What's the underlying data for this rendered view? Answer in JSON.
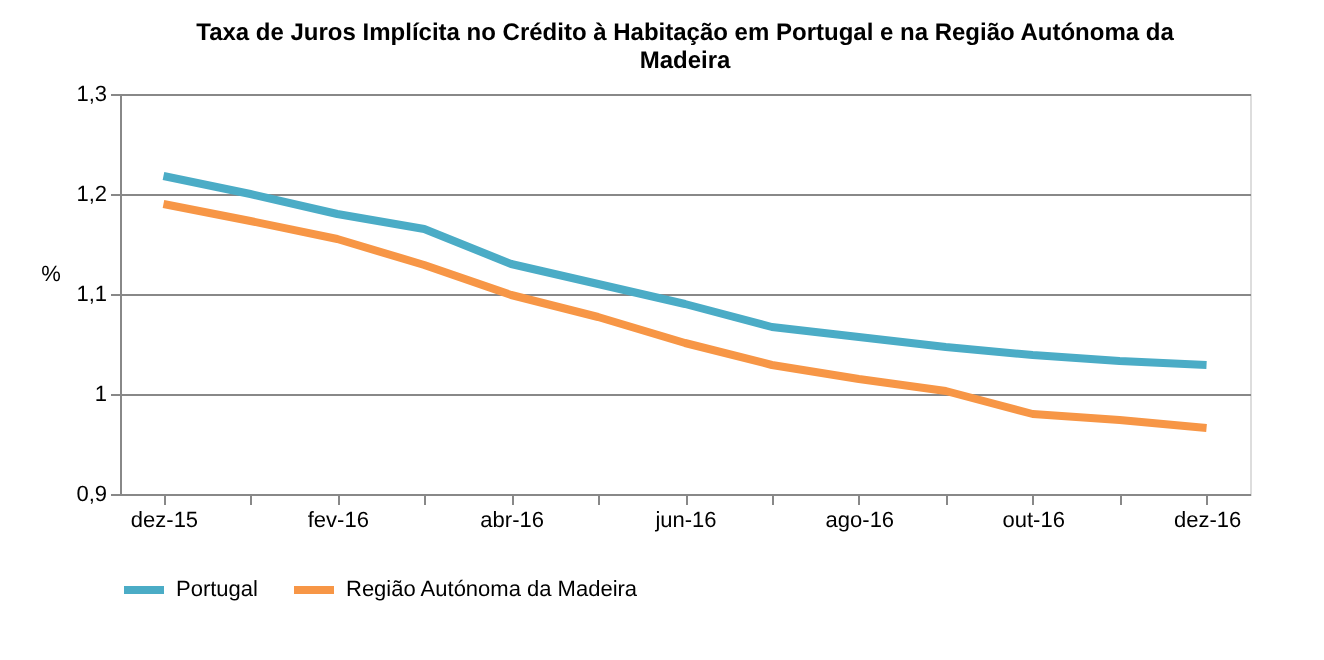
{
  "chart_data": {
    "type": "line",
    "title": "Taxa de Juros Implícita no Crédito à Habitação em Portugal e na Região Autónoma da Madeira",
    "ylabel": "%",
    "categories": [
      "dez-15",
      null,
      "fev-16",
      null,
      "abr-16",
      null,
      "jun-16",
      null,
      "ago-16",
      null,
      "out-16",
      null,
      "dez-16"
    ],
    "series": [
      {
        "name": "Portugal",
        "color": "#4bacc6",
        "values": [
          1.218,
          1.2,
          1.18,
          1.165,
          1.13,
          1.11,
          1.09,
          1.067,
          1.057,
          1.047,
          1.039,
          1.033,
          1.029
        ]
      },
      {
        "name": "Região Autónoma da Madeira",
        "color": "#f79646",
        "values": [
          1.19,
          1.173,
          1.155,
          1.129,
          1.099,
          1.077,
          1.051,
          1.029,
          1.015,
          1.003,
          0.98,
          0.974,
          0.966
        ]
      }
    ],
    "ylim": [
      0.9,
      1.3
    ],
    "yticks": [
      {
        "value": 0.9,
        "label": "0,9"
      },
      {
        "value": 1,
        "label": "1"
      },
      {
        "value": 1.1,
        "label": "1,1"
      },
      {
        "value": 1.2,
        "label": "1,2"
      },
      {
        "value": 1.3,
        "label": "1,3"
      }
    ],
    "grid": "y",
    "legend": "bottom",
    "marker": "none",
    "line_style": "solid"
  }
}
